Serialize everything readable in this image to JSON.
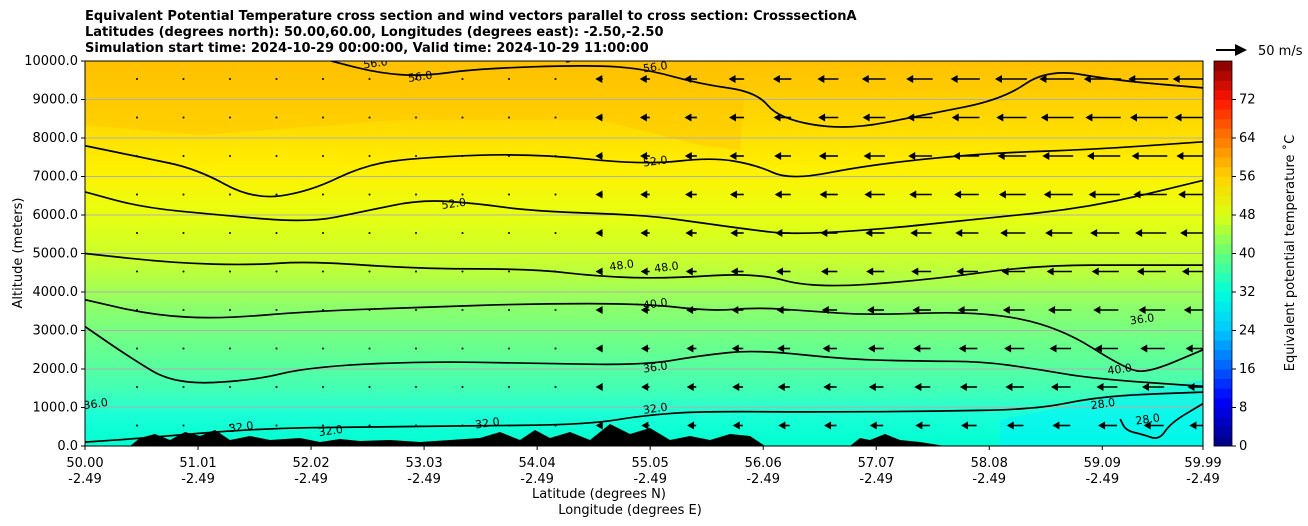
{
  "title": {
    "line1": "Equivalent Potential Temperature cross section and wind vectors parallel to cross section: CrosssectionA",
    "line2": "Latitudes (degrees north): 50.00,60.00, Longitudes (degrees east): -2.50,-2.50",
    "line3": "Simulation start time: 2024-10-29 00:00:00, Valid time: 2024-10-29 11:00:00"
  },
  "chart_data": {
    "type": "heatmap",
    "title": "Equivalent Potential Temperature cross section and wind vectors parallel to cross section: CrosssectionA",
    "ylabel": "Altitude (meters)",
    "xlabel": "Latitude (degrees N)",
    "xlabel2": "Longitude (degrees E)",
    "ylim": [
      0,
      10000
    ],
    "xlim": [
      50.0,
      59.99
    ],
    "grid": "horizontal",
    "y_ticks": [
      "0.0",
      "1000.0",
      "2000.0",
      "3000.0",
      "4000.0",
      "5000.0",
      "6000.0",
      "7000.0",
      "8000.0",
      "9000.0",
      "10000.0"
    ],
    "x_ticks": [
      {
        "lat": "50.00",
        "lon": "-2.49"
      },
      {
        "lat": "51.01",
        "lon": "-2.49"
      },
      {
        "lat": "52.02",
        "lon": "-2.49"
      },
      {
        "lat": "53.03",
        "lon": "-2.49"
      },
      {
        "lat": "54.04",
        "lon": "-2.49"
      },
      {
        "lat": "55.05",
        "lon": "-2.49"
      },
      {
        "lat": "56.06",
        "lon": "-2.49"
      },
      {
        "lat": "57.07",
        "lon": "-2.49"
      },
      {
        "lat": "58.08",
        "lon": "-2.49"
      },
      {
        "lat": "59.09",
        "lon": "-2.49"
      },
      {
        "lat": "59.99",
        "lon": "-2.49"
      }
    ],
    "colorbar": {
      "label": "Equivalent potential temperature ˚C",
      "min": 0,
      "max": 80,
      "ticks": [
        "0",
        "8",
        "16",
        "24",
        "32",
        "40",
        "48",
        "56",
        "64",
        "72"
      ],
      "levels": 40
    },
    "contours": [
      {
        "value": 28,
        "points": [
          [
            59.25,
            700
          ],
          [
            59.3,
            400
          ],
          [
            59.45,
            300
          ],
          [
            59.6,
            150
          ],
          [
            59.7,
            600
          ],
          [
            59.99,
            1100
          ]
        ]
      },
      {
        "value": 32,
        "points": [
          [
            50.0,
            100
          ],
          [
            50.5,
            200
          ],
          [
            51.5,
            450
          ],
          [
            52.5,
            500
          ],
          [
            53.5,
            520
          ],
          [
            54.5,
            560
          ],
          [
            55.0,
            800
          ],
          [
            55.5,
            900
          ],
          [
            56.5,
            880
          ],
          [
            57.5,
            900
          ],
          [
            58.5,
            950
          ],
          [
            59.0,
            1250
          ],
          [
            59.5,
            1350
          ],
          [
            59.99,
            1400
          ]
        ]
      },
      {
        "value": 36,
        "points": [
          [
            50.0,
            3100
          ],
          [
            50.4,
            2300
          ],
          [
            50.8,
            1600
          ],
          [
            51.5,
            1700
          ],
          [
            52.0,
            2050
          ],
          [
            53.0,
            2200
          ],
          [
            54.0,
            2150
          ],
          [
            55.0,
            2100
          ],
          [
            55.5,
            2350
          ],
          [
            56.0,
            2500
          ],
          [
            56.8,
            2250
          ],
          [
            57.5,
            2200
          ],
          [
            58.0,
            2200
          ],
          [
            58.5,
            2000
          ],
          [
            59.0,
            1750
          ],
          [
            59.99,
            1550
          ]
        ]
      },
      {
        "value": 40,
        "points": [
          [
            50.0,
            3800
          ],
          [
            50.6,
            3400
          ],
          [
            51.2,
            3300
          ],
          [
            52.0,
            3500
          ],
          [
            53.0,
            3600
          ],
          [
            54.0,
            3700
          ],
          [
            55.0,
            3700
          ],
          [
            55.6,
            3500
          ],
          [
            56.0,
            3600
          ],
          [
            56.5,
            3500
          ],
          [
            57.0,
            3400
          ],
          [
            58.0,
            3500
          ],
          [
            58.7,
            3100
          ],
          [
            59.3,
            2000
          ],
          [
            59.5,
            1900
          ],
          [
            59.99,
            2500
          ]
        ]
      },
      {
        "value": 48,
        "points": [
          [
            50.0,
            5000
          ],
          [
            50.8,
            4750
          ],
          [
            51.5,
            4700
          ],
          [
            52.0,
            4800
          ],
          [
            53.0,
            4600
          ],
          [
            54.0,
            4600
          ],
          [
            54.6,
            4400
          ],
          [
            55.2,
            4350
          ],
          [
            56.0,
            4500
          ],
          [
            56.5,
            4100
          ],
          [
            57.5,
            4300
          ],
          [
            58.5,
            4700
          ],
          [
            59.5,
            4700
          ],
          [
            59.99,
            4700
          ]
        ]
      },
      {
        "value": 52,
        "points": [
          [
            50.0,
            6600
          ],
          [
            50.5,
            6200
          ],
          [
            51.2,
            6000
          ],
          [
            52.0,
            5800
          ],
          [
            52.5,
            6100
          ],
          [
            53.0,
            6400
          ],
          [
            53.5,
            6300
          ],
          [
            54.0,
            6100
          ],
          [
            55.0,
            6000
          ],
          [
            55.5,
            5800
          ],
          [
            56.0,
            5600
          ],
          [
            56.3,
            5500
          ],
          [
            57.0,
            5600
          ],
          [
            58.0,
            5900
          ],
          [
            59.0,
            6200
          ],
          [
            59.99,
            6900
          ]
        ]
      },
      {
        "value": 52,
        "points": [
          [
            50.0,
            7800
          ],
          [
            50.5,
            7500
          ],
          [
            51.0,
            7200
          ],
          [
            51.5,
            6400
          ],
          [
            52.0,
            6600
          ],
          [
            52.5,
            7300
          ],
          [
            53.0,
            7500
          ],
          [
            54.0,
            7600
          ],
          [
            55.0,
            7300
          ],
          [
            55.6,
            7500
          ],
          [
            56.0,
            7300
          ],
          [
            56.3,
            6900
          ],
          [
            57.0,
            7300
          ],
          [
            58.0,
            7600
          ],
          [
            59.0,
            7700
          ],
          [
            59.99,
            7900
          ]
        ]
      },
      {
        "value": 56,
        "points": [
          [
            52.2,
            10000
          ],
          [
            52.6,
            9700
          ],
          [
            53.0,
            9600
          ],
          [
            53.5,
            9800
          ],
          [
            54.5,
            9900
          ],
          [
            55.0,
            9800
          ],
          [
            55.5,
            9400
          ],
          [
            56.0,
            9200
          ],
          [
            56.2,
            8500
          ],
          [
            56.8,
            8200
          ],
          [
            57.5,
            8600
          ],
          [
            58.2,
            9000
          ],
          [
            58.6,
            9800
          ],
          [
            59.2,
            9500
          ],
          [
            59.99,
            9300
          ]
        ]
      }
    ],
    "contour_labels": [
      {
        "text": "56.0",
        "lat": 52.6,
        "alt": 9850
      },
      {
        "text": "56.0",
        "lat": 53.0,
        "alt": 9500
      },
      {
        "text": "56.0",
        "lat": 54.4,
        "alt": 10000
      },
      {
        "text": "56.0",
        "lat": 55.1,
        "alt": 9750
      },
      {
        "text": "52.0",
        "lat": 55.1,
        "alt": 7300
      },
      {
        "text": "52.0",
        "lat": 53.3,
        "alt": 6200
      },
      {
        "text": "48.0",
        "lat": 54.8,
        "alt": 4600
      },
      {
        "text": "48.0",
        "lat": 55.2,
        "alt": 4550
      },
      {
        "text": "40.0",
        "lat": 55.1,
        "alt": 3600
      },
      {
        "text": "36.0",
        "lat": 55.1,
        "alt": 1950
      },
      {
        "text": "36.0",
        "lat": 59.45,
        "alt": 3200
      },
      {
        "text": "40.0",
        "lat": 59.25,
        "alt": 1900
      },
      {
        "text": "32.0",
        "lat": 55.1,
        "alt": 880
      },
      {
        "text": "32.0",
        "lat": 53.6,
        "alt": 500
      },
      {
        "text": "28.0",
        "lat": 59.1,
        "alt": 1000
      },
      {
        "text": "28.0",
        "lat": 59.5,
        "alt": 600
      },
      {
        "text": "36.0",
        "lat": 50.1,
        "alt": 1000
      },
      {
        "text": "32.0",
        "lat": 51.4,
        "alt": 400
      },
      {
        "text": "32.0",
        "lat": 52.2,
        "alt": 300
      }
    ],
    "wind_reference": {
      "label": "50 m/s"
    }
  }
}
